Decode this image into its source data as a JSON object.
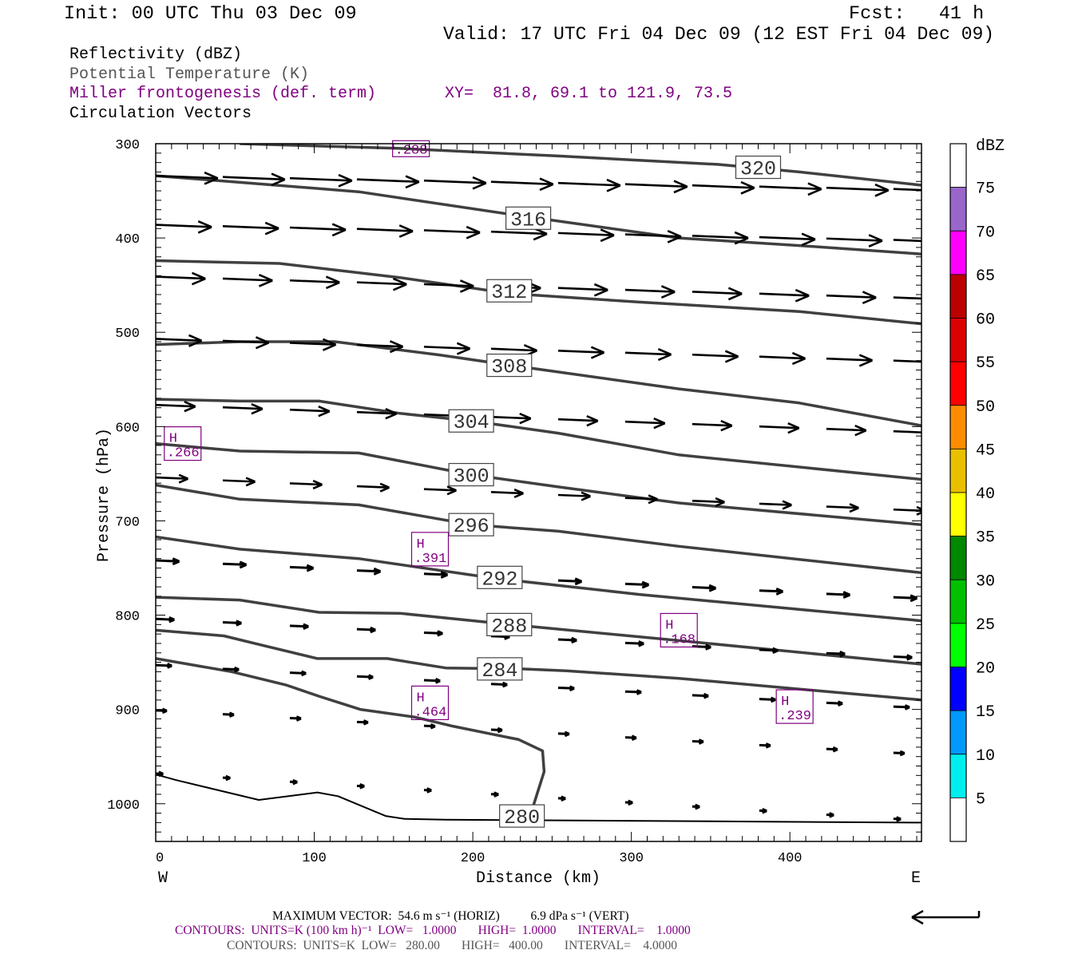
{
  "header": {
    "init": "Init: 00 UTC Thu 03 Dec 09",
    "fcst": "Fcst:   41 h",
    "valid": "Valid: 17 UTC Fri 04 Dec 09 (12 EST Fri 04 Dec 09)"
  },
  "legend": {
    "reflectivity": "Reflectivity (dBZ)",
    "theta": "Potential Temperature (K)",
    "frontogenesis": "Miller frontogenesis (def. term)",
    "xy": "XY=  81.8, 69.1 to 121.9, 73.5",
    "vectors": "Circulation Vectors"
  },
  "footer": {
    "max_vector": "MAXIMUM VECTOR:  54.6 m s⁻¹ (HORIZ)          6.9 dPa s⁻¹ (VERT)",
    "contours_fronto": "CONTOURS:  UNITS=K (100 km h)⁻¹  LOW=   1.0000       HIGH=  1.0000       INTERVAL=    1.0000",
    "contours_theta": "CONTOURS:  UNITS=K  LOW=   280.00       HIGH=   400.00       INTERVAL=    4.0000"
  },
  "colors": {
    "contour": "#404040",
    "fronto": "#800080",
    "vector": "#000000"
  },
  "chart_data": {
    "type": "cross-section",
    "xlabel": "Distance (km)",
    "ylabel": "Pressure (hPa)",
    "x_end_labels": {
      "west": "W",
      "east": "E"
    },
    "xlim": [
      0,
      483
    ],
    "ylim": [
      300,
      1040
    ],
    "xticks": [
      0,
      100,
      200,
      300,
      400
    ],
    "yticks": [
      300,
      400,
      500,
      600,
      700,
      800,
      900,
      1000
    ],
    "theta_contours": [
      {
        "value": "320",
        "label_at": [
          380,
          325
        ],
        "points": [
          [
            53,
            300
          ],
          [
            154,
            305
          ],
          [
            254,
            313
          ],
          [
            355,
            322
          ],
          [
            406,
            330
          ],
          [
            483,
            344
          ]
        ]
      },
      {
        "value": "316",
        "label_at": [
          235,
          379
        ],
        "points": [
          [
            0,
            334
          ],
          [
            53,
            341
          ],
          [
            128,
            351
          ],
          [
            224,
            375
          ],
          [
            330,
            400
          ],
          [
            406,
            408
          ],
          [
            483,
            417
          ]
        ]
      },
      {
        "value": "312",
        "label_at": [
          223,
          456
        ],
        "points": [
          [
            0,
            424
          ],
          [
            78,
            427
          ],
          [
            154,
            442
          ],
          [
            224,
            459
          ],
          [
            305,
            468
          ],
          [
            406,
            478
          ],
          [
            483,
            491
          ]
        ]
      },
      {
        "value": "308",
        "label_at": [
          223,
          535
        ],
        "points": [
          [
            0,
            513
          ],
          [
            53,
            510
          ],
          [
            113,
            510
          ],
          [
            179,
            524
          ],
          [
            224,
            535
          ],
          [
            330,
            560
          ],
          [
            406,
            575
          ],
          [
            483,
            599
          ]
        ]
      },
      {
        "value": "304",
        "label_at": [
          199,
          594
        ],
        "points": [
          [
            0,
            571
          ],
          [
            53,
            573
          ],
          [
            103,
            573
          ],
          [
            154,
            586
          ],
          [
            199,
            594
          ],
          [
            254,
            607
          ],
          [
            330,
            630
          ],
          [
            483,
            656
          ]
        ]
      },
      {
        "value": "300",
        "label_at": [
          199,
          651
        ],
        "points": [
          [
            0,
            618
          ],
          [
            53,
            626
          ],
          [
            128,
            628
          ],
          [
            199,
            651
          ],
          [
            254,
            664
          ],
          [
            330,
            681
          ],
          [
            483,
            704
          ]
        ]
      },
      {
        "value": "296",
        "label_at": [
          199,
          704
        ],
        "points": [
          [
            0,
            662
          ],
          [
            53,
            677
          ],
          [
            128,
            683
          ],
          [
            199,
            704
          ],
          [
            254,
            711
          ],
          [
            330,
            727
          ],
          [
            483,
            755
          ]
        ]
      },
      {
        "value": "292",
        "label_at": [
          217,
          760
        ],
        "points": [
          [
            0,
            717
          ],
          [
            53,
            730
          ],
          [
            128,
            740
          ],
          [
            214,
            761
          ],
          [
            305,
            778
          ],
          [
            483,
            806
          ]
        ]
      },
      {
        "value": "288",
        "label_at": [
          223,
          810
        ],
        "points": [
          [
            0,
            781
          ],
          [
            53,
            784
          ],
          [
            103,
            797
          ],
          [
            154,
            798
          ],
          [
            224,
            810
          ],
          [
            330,
            827
          ],
          [
            483,
            852
          ]
        ]
      },
      {
        "value": "284",
        "label_at": [
          217,
          857
        ],
        "points": [
          [
            0,
            816
          ],
          [
            43,
            822
          ],
          [
            65,
            831
          ],
          [
            102,
            846
          ],
          [
            146,
            846
          ],
          [
            183,
            856
          ],
          [
            231,
            857
          ],
          [
            259,
            859
          ],
          [
            330,
            867
          ],
          [
            483,
            890
          ]
        ]
      },
      {
        "value": "280",
        "label_at": [
          231,
          1013
        ],
        "points": [
          [
            0,
            846
          ],
          [
            48,
            860
          ],
          [
            82,
            874
          ],
          [
            103,
            886
          ],
          [
            129,
            900
          ],
          [
            163,
            908
          ],
          [
            188,
            918
          ],
          [
            229,
            932
          ],
          [
            244,
            944
          ],
          [
            245,
            966
          ],
          [
            238,
            1003
          ]
        ]
      },
      {
        "value": "280",
        "thin": true,
        "points": [
          [
            0,
            969
          ],
          [
            13,
            975
          ],
          [
            65,
            996
          ],
          [
            102,
            988
          ],
          [
            115,
            992
          ],
          [
            145,
            1013
          ],
          [
            157,
            1016
          ],
          [
            183,
            1017
          ],
          [
            483,
            1020
          ]
        ]
      }
    ],
    "frontogenesis_maxima": [
      {
        "label": "",
        "value": ".288",
        "at": [
          161,
          307
        ]
      },
      {
        "label": "H",
        "value": ".266",
        "at": [
          17,
          618
        ]
      },
      {
        "label": "H",
        "value": ".391",
        "at": [
          173,
          730
        ]
      },
      {
        "label": "H",
        "value": ".168",
        "at": [
          330,
          816
        ]
      },
      {
        "label": "H",
        "value": ".464",
        "at": [
          173,
          893
        ]
      },
      {
        "label": "H",
        "value": ".239",
        "at": [
          403,
          897
        ]
      }
    ],
    "vectors": {
      "units": "m s-1",
      "max_speed": 54.6,
      "columns_km": [
        0,
        42.3,
        84.6,
        126.9,
        169.2,
        211.5,
        253.8,
        296.1,
        338.4,
        380.7,
        423,
        465.3
      ],
      "rows": [
        {
          "p_west": 334,
          "p_east": 348,
          "speed": 50
        },
        {
          "p_west": 386,
          "p_east": 402,
          "speed": 45
        },
        {
          "p_west": 441,
          "p_east": 463,
          "speed": 40
        },
        {
          "p_west": 507,
          "p_east": 530,
          "speed": 37
        },
        {
          "p_west": 577,
          "p_east": 605,
          "speed": 32
        },
        {
          "p_west": 654,
          "p_east": 688,
          "speed": 26
        },
        {
          "p_west": 742,
          "p_east": 781,
          "speed": 19
        },
        {
          "p_west": 804,
          "p_east": 844,
          "speed": 15
        },
        {
          "p_west": 853,
          "p_east": 897,
          "speed": 13
        },
        {
          "p_west": 901,
          "p_east": 946,
          "speed": 9
        },
        {
          "p_west": 968,
          "p_east": 1016,
          "speed": 6
        }
      ]
    },
    "colorbar": {
      "title": "dBZ",
      "labels": [
        "75",
        "70",
        "65",
        "60",
        "55",
        "50",
        "45",
        "40",
        "35",
        "30",
        "25",
        "20",
        "15",
        "10",
        "5"
      ],
      "colors_top_to_bottom": [
        "#ffffff",
        "#9966cc",
        "#ff00ff",
        "#bb0000",
        "#dd0000",
        "#ff0000",
        "#ff8c00",
        "#e8c000",
        "#ffff00",
        "#008800",
        "#00c000",
        "#00ff00",
        "#0000ff",
        "#0099ff",
        "#00eeee",
        "#ffffff"
      ]
    }
  }
}
